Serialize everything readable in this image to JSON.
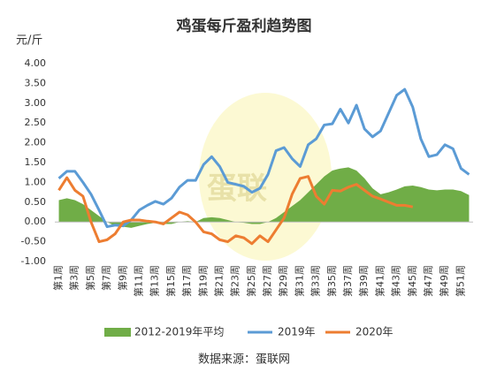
{
  "chart_data": {
    "type": "line",
    "title": "鸡蛋每斤盈利趋势图",
    "y_label": "元/斤",
    "source": "数据来源：蛋联网",
    "watermark": "蛋联",
    "categories": [
      "第1周",
      null,
      "第3周",
      null,
      "第5周",
      null,
      "第7周",
      null,
      "第9周",
      null,
      "第11周",
      null,
      "第13周",
      null,
      "第15周",
      null,
      "第17周",
      null,
      "第19周",
      null,
      "第21周",
      null,
      "第23周",
      null,
      "第25周",
      null,
      "第27周",
      null,
      "第29周",
      null,
      "第31周",
      null,
      "第33周",
      null,
      "第35周",
      null,
      "第37周",
      null,
      "第39周",
      null,
      "第41周",
      null,
      "第43周",
      null,
      "第45周",
      null,
      "第47周",
      null,
      "第49周",
      null,
      "第51周",
      null
    ],
    "series": [
      {
        "name": "2012-2019年平均",
        "type": "area",
        "color": "#70ad47",
        "values": [
          0.55,
          0.6,
          0.55,
          0.45,
          0.3,
          0.15,
          0.0,
          -0.1,
          -0.12,
          -0.15,
          -0.1,
          -0.05,
          -0.02,
          -0.05,
          -0.05,
          0.0,
          0.02,
          0.0,
          0.1,
          0.12,
          0.1,
          0.05,
          0.0,
          -0.02,
          -0.05,
          -0.05,
          0.0,
          0.1,
          0.25,
          0.4,
          0.55,
          0.75,
          0.95,
          1.15,
          1.3,
          1.35,
          1.38,
          1.3,
          1.1,
          0.85,
          0.7,
          0.75,
          0.82,
          0.9,
          0.92,
          0.88,
          0.82,
          0.8,
          0.82,
          0.82,
          0.78,
          0.68
        ]
      },
      {
        "name": "2019年",
        "type": "line",
        "color": "#5b9bd5",
        "values": [
          1.1,
          1.28,
          1.28,
          1.0,
          0.7,
          0.3,
          -0.12,
          -0.08,
          -0.1,
          0.05,
          0.3,
          0.42,
          0.52,
          0.45,
          0.6,
          0.88,
          1.05,
          1.05,
          1.45,
          1.65,
          1.4,
          1.0,
          0.95,
          0.9,
          0.75,
          0.85,
          1.2,
          1.8,
          1.88,
          1.6,
          1.4,
          1.95,
          2.1,
          2.45,
          2.48,
          2.85,
          2.5,
          2.95,
          2.35,
          2.15,
          2.3,
          2.75,
          3.2,
          3.35,
          2.9,
          2.1,
          1.65,
          1.7,
          1.95,
          1.85,
          1.35,
          1.2
        ]
      },
      {
        "name": "2020年",
        "type": "line",
        "color": "#ed7d31",
        "values": [
          0.8,
          1.12,
          0.8,
          0.65,
          0.0,
          -0.5,
          -0.45,
          -0.3,
          0.0,
          0.05,
          0.05,
          0.02,
          0.0,
          -0.05,
          0.1,
          0.25,
          0.18,
          0.0,
          -0.25,
          -0.3,
          -0.45,
          -0.5,
          -0.35,
          -0.4,
          -0.55,
          -0.35,
          -0.5,
          -0.2,
          0.1,
          0.7,
          1.1,
          1.15,
          0.65,
          0.45,
          0.8,
          0.78,
          0.88,
          0.95,
          0.8,
          0.65,
          0.58,
          0.5,
          0.42,
          0.42,
          0.38,
          null,
          null,
          null,
          null,
          null,
          null,
          null
        ]
      }
    ],
    "ylim": [
      -1,
      4
    ],
    "yticks": [
      {
        "value": -1,
        "label": "-1.00"
      },
      {
        "value": -0.5,
        "label": "-0.50"
      },
      {
        "value": 0,
        "label": "0.00"
      },
      {
        "value": 0.5,
        "label": "0.50"
      },
      {
        "value": 1,
        "label": "1.00"
      },
      {
        "value": 1.5,
        "label": "1.50"
      },
      {
        "value": 2,
        "label": "2.00"
      },
      {
        "value": 2.5,
        "label": "2.50"
      },
      {
        "value": 3,
        "label": "3.00"
      },
      {
        "value": 3.5,
        "label": "3.50"
      },
      {
        "value": 4,
        "label": "4.00"
      }
    ],
    "legend": "bottom"
  }
}
